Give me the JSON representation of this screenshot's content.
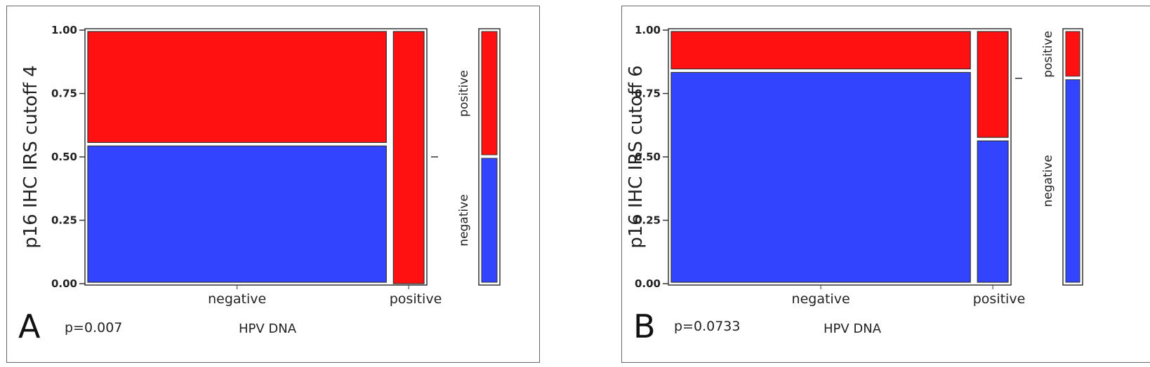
{
  "colors": {
    "negative": "#3344ff",
    "positive": "#ff1111",
    "frame": "#333333"
  },
  "chart_data": [
    {
      "type": "mosaic",
      "panel_label": "A",
      "p_value_text": "p=0.007",
      "xlabel": "HPV DNA",
      "ylabel": "p16 IHC IRS cutoff 4",
      "ylim": [
        0,
        1
      ],
      "yticks": [
        "0.00",
        "0.25",
        "0.50",
        "0.75",
        "1.00"
      ],
      "categories": [
        "negative",
        "positive"
      ],
      "column_share": [
        0.9,
        0.1
      ],
      "series": [
        {
          "name": "negative",
          "values": [
            0.55,
            0.0
          ]
        },
        {
          "name": "positive",
          "values": [
            0.45,
            1.0
          ]
        }
      ],
      "side_bar": {
        "negative": 0.5,
        "positive": 0.5,
        "labels": [
          "positive",
          "negative"
        ]
      }
    },
    {
      "type": "mosaic",
      "panel_label": "B",
      "p_value_text": "p=0.0733",
      "xlabel": "HPV DNA",
      "ylabel": "p16 IHC IRS cutoff 6",
      "ylim": [
        0,
        1
      ],
      "yticks": [
        "0.00",
        "0.25",
        "0.50",
        "0.75",
        "1.00"
      ],
      "categories": [
        "negative",
        "positive"
      ],
      "column_share": [
        0.9,
        0.1
      ],
      "series": [
        {
          "name": "negative",
          "values": [
            0.84,
            0.57
          ]
        },
        {
          "name": "positive",
          "values": [
            0.16,
            0.43
          ]
        }
      ],
      "side_bar": {
        "negative": 0.81,
        "positive": 0.19,
        "labels": [
          "positive",
          "negative"
        ]
      }
    }
  ]
}
